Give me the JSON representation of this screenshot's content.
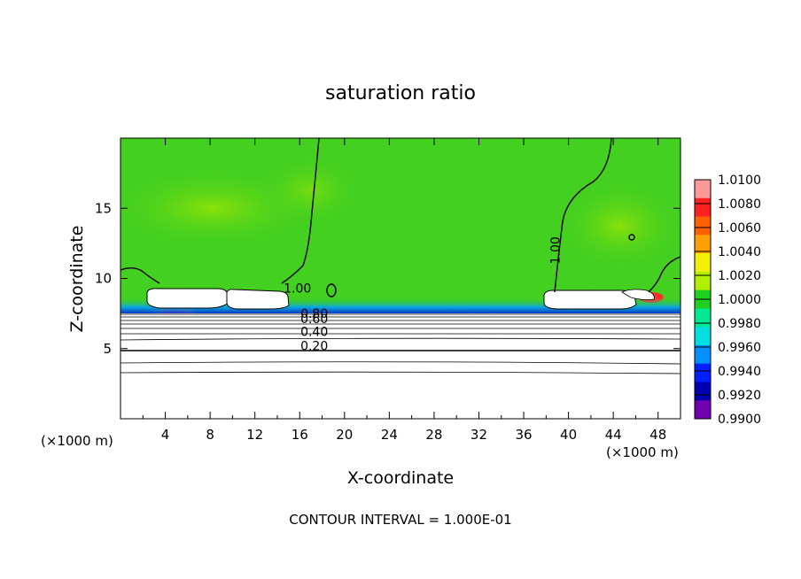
{
  "chart_data": {
    "type": "heatmap",
    "title": "saturation ratio",
    "xlabel": "X-coordinate",
    "ylabel": "Z-coordinate",
    "x_unit_label": "(×1000 m)",
    "y_unit_label": "(×1000 m)",
    "xlim": [
      0,
      50
    ],
    "ylim": [
      0,
      20
    ],
    "x_ticks": [
      "4",
      "8",
      "12",
      "16",
      "20",
      "24",
      "28",
      "32",
      "36",
      "40",
      "44",
      "48"
    ],
    "x_tick_values": [
      4,
      8,
      12,
      16,
      20,
      24,
      28,
      32,
      36,
      40,
      44,
      48
    ],
    "y_ticks": [
      "5",
      "10",
      "15"
    ],
    "y_tick_values": [
      5,
      10,
      15
    ],
    "footer": "CONTOUR INTERVAL = 1.000E-01",
    "colorbar": {
      "labels": [
        "1.0100",
        "1.0080",
        "1.0060",
        "1.0040",
        "1.0020",
        "1.0000",
        "0.9980",
        "0.9960",
        "0.9940",
        "0.9920",
        "0.9900"
      ],
      "colors": [
        "#ff9999",
        "#ff2020",
        "#ff6000",
        "#ffa000",
        "#f0f000",
        "#b0f000",
        "#20d020",
        "#00e890",
        "#00e0e0",
        "#0090ff",
        "#0020ff",
        "#0000b0",
        "#7000b0"
      ]
    },
    "contour_labels": [
      {
        "text": "1.00",
        "x": 15.8,
        "z": 9.0
      },
      {
        "text": "1.00",
        "x": 39.2,
        "z": 12.0
      },
      {
        "text": "0.80",
        "x": 17.3,
        "z": 7.2
      },
      {
        "text": "0.60",
        "x": 17.3,
        "z": 6.8
      },
      {
        "text": "0.40",
        "x": 17.3,
        "z": 5.9
      },
      {
        "text": "0.20",
        "x": 17.3,
        "z": 4.9
      }
    ]
  }
}
